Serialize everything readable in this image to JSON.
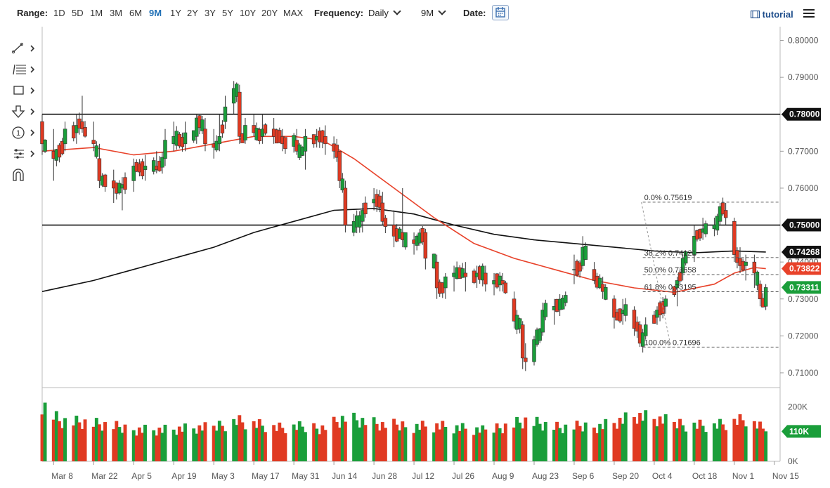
{
  "toolbar": {
    "range_label": "Range:",
    "ranges": [
      "1D",
      "5D",
      "1M",
      "3M",
      "6M",
      "9M",
      "1Y",
      "2Y",
      "3Y",
      "5Y",
      "10Y",
      "20Y",
      "MAX"
    ],
    "active_range": "9M",
    "frequency_label": "Frequency:",
    "frequency_value": "Daily",
    "period_value": "9M",
    "date_label": "Date:",
    "tutorial_label": "tutorial"
  },
  "colors": {
    "up": "#1a9e3a",
    "down": "#e03a22",
    "ma_short": "#e8422a",
    "ma_long": "#111111"
  },
  "chart_data": {
    "type": "candlestick",
    "y_axis": {
      "range": [
        0.706,
        0.802
      ],
      "ticks": [
        0.8,
        0.79,
        0.78,
        0.77,
        0.76,
        0.75,
        0.74,
        0.73,
        0.72,
        0.71
      ],
      "tick_labels": [
        "0.80000",
        "0.79000",
        "0.78000",
        "0.77000",
        "0.76000",
        "0.75000",
        "0.74000",
        "0.73000",
        "0.72000",
        "0.71000"
      ]
    },
    "x_axis": {
      "start": "2021-03-04",
      "end": "2021-11-17",
      "tick_dates": [
        "2021-03-08",
        "2021-03-22",
        "2021-04-05",
        "2021-04-19",
        "2021-05-03",
        "2021-05-17",
        "2021-05-31",
        "2021-06-14",
        "2021-06-28",
        "2021-07-12",
        "2021-07-26",
        "2021-08-09",
        "2021-08-23",
        "2021-09-06",
        "2021-09-20",
        "2021-10-04",
        "2021-10-18",
        "2021-11-01",
        "2021-11-15"
      ],
      "tick_labels": [
        "Mar 8",
        "Mar 22",
        "Apr 5",
        "Apr 19",
        "May 3",
        "May 17",
        "May 31",
        "Jun 14",
        "Jun 28",
        "Jul 12",
        "Jul 26",
        "Aug 9",
        "Aug 23",
        "Sep 6",
        "Sep 20",
        "Oct 4",
        "Oct 18",
        "Nov 1",
        "Nov 15"
      ]
    },
    "anchors": [
      [
        "2021-03-04",
        0.778,
        0.78,
        0.769,
        0.772
      ],
      [
        "2021-03-08",
        0.77,
        0.776,
        0.762,
        0.768
      ],
      [
        "2021-03-12",
        0.772,
        0.778,
        0.77,
        0.776
      ],
      [
        "2021-03-16",
        0.775,
        0.78,
        0.772,
        0.777
      ],
      [
        "2021-03-18",
        0.778,
        0.785,
        0.775,
        0.776
      ],
      [
        "2021-03-22",
        0.773,
        0.778,
        0.77,
        0.772
      ],
      [
        "2021-03-24",
        0.768,
        0.772,
        0.76,
        0.762
      ],
      [
        "2021-03-29",
        0.762,
        0.765,
        0.756,
        0.76
      ],
      [
        "2021-04-01",
        0.76,
        0.763,
        0.754,
        0.761
      ],
      [
        "2021-04-05",
        0.762,
        0.768,
        0.759,
        0.766
      ],
      [
        "2021-04-09",
        0.765,
        0.769,
        0.762,
        0.766
      ],
      [
        "2021-04-13",
        0.766,
        0.77,
        0.764,
        0.765
      ],
      [
        "2021-04-16",
        0.768,
        0.776,
        0.766,
        0.773
      ],
      [
        "2021-04-19",
        0.772,
        0.778,
        0.77,
        0.774
      ],
      [
        "2021-04-23",
        0.772,
        0.778,
        0.77,
        0.775
      ],
      [
        "2021-04-27",
        0.774,
        0.78,
        0.772,
        0.779
      ],
      [
        "2021-04-30",
        0.776,
        0.779,
        0.77,
        0.772
      ],
      [
        "2021-05-03",
        0.772,
        0.776,
        0.768,
        0.771
      ],
      [
        "2021-05-05",
        0.772,
        0.78,
        0.77,
        0.774
      ],
      [
        "2021-05-07",
        0.778,
        0.785,
        0.776,
        0.782
      ],
      [
        "2021-05-10",
        0.783,
        0.789,
        0.78,
        0.787
      ],
      [
        "2021-05-12",
        0.786,
        0.788,
        0.772,
        0.774
      ],
      [
        "2021-05-14",
        0.773,
        0.779,
        0.772,
        0.777
      ],
      [
        "2021-05-17",
        0.777,
        0.78,
        0.774,
        0.775
      ],
      [
        "2021-05-20",
        0.774,
        0.78,
        0.772,
        0.776
      ],
      [
        "2021-05-24",
        0.776,
        0.779,
        0.772,
        0.774
      ],
      [
        "2021-05-27",
        0.774,
        0.776,
        0.77,
        0.772
      ],
      [
        "2021-06-01",
        0.773,
        0.776,
        0.769,
        0.77
      ],
      [
        "2021-06-04",
        0.77,
        0.776,
        0.765,
        0.774
      ],
      [
        "2021-06-08",
        0.773,
        0.776,
        0.771,
        0.774
      ],
      [
        "2021-06-11",
        0.774,
        0.777,
        0.769,
        0.772
      ],
      [
        "2021-06-14",
        0.772,
        0.774,
        0.768,
        0.77
      ],
      [
        "2021-06-16",
        0.77,
        0.77,
        0.76,
        0.762
      ],
      [
        "2021-06-18",
        0.76,
        0.762,
        0.748,
        0.75
      ],
      [
        "2021-06-21",
        0.748,
        0.753,
        0.747,
        0.751
      ],
      [
        "2021-06-24",
        0.751,
        0.756,
        0.748,
        0.754
      ],
      [
        "2021-06-28",
        0.756,
        0.76,
        0.754,
        0.757
      ],
      [
        "2021-07-01",
        0.756,
        0.759,
        0.75,
        0.751
      ],
      [
        "2021-07-05",
        0.75,
        0.754,
        0.744,
        0.747
      ],
      [
        "2021-07-08",
        0.748,
        0.76,
        0.744,
        0.746
      ],
      [
        "2021-07-12",
        0.746,
        0.748,
        0.742,
        0.745
      ],
      [
        "2021-07-16",
        0.748,
        0.749,
        0.738,
        0.741
      ],
      [
        "2021-07-20",
        0.74,
        0.742,
        0.73,
        0.733
      ],
      [
        "2021-07-23",
        0.733,
        0.737,
        0.73,
        0.736
      ],
      [
        "2021-07-26",
        0.736,
        0.739,
        0.732,
        0.737
      ],
      [
        "2021-07-30",
        0.737,
        0.74,
        0.732,
        0.736
      ],
      [
        "2021-08-03",
        0.736,
        0.739,
        0.733,
        0.737
      ],
      [
        "2021-08-06",
        0.737,
        0.739,
        0.732,
        0.734
      ],
      [
        "2021-08-09",
        0.734,
        0.737,
        0.731,
        0.735
      ],
      [
        "2021-08-12",
        0.735,
        0.737,
        0.732,
        0.734
      ],
      [
        "2021-08-16",
        0.73,
        0.732,
        0.722,
        0.724
      ],
      [
        "2021-08-19",
        0.723,
        0.724,
        0.711,
        0.714
      ],
      [
        "2021-08-20",
        0.714,
        0.718,
        0.7105,
        0.713
      ],
      [
        "2021-08-23",
        0.713,
        0.72,
        0.712,
        0.719
      ],
      [
        "2021-08-26",
        0.721,
        0.729,
        0.72,
        0.727
      ],
      [
        "2021-08-30",
        0.727,
        0.73,
        0.723,
        0.728
      ],
      [
        "2021-09-03",
        0.729,
        0.732,
        0.728,
        0.731
      ],
      [
        "2021-09-06",
        0.738,
        0.742,
        0.734,
        0.738
      ],
      [
        "2021-09-09",
        0.739,
        0.747,
        0.738,
        0.744
      ],
      [
        "2021-09-13",
        0.738,
        0.74,
        0.734,
        0.735
      ],
      [
        "2021-09-16",
        0.734,
        0.736,
        0.73,
        0.732
      ],
      [
        "2021-09-20",
        0.73,
        0.731,
        0.722,
        0.725
      ],
      [
        "2021-09-23",
        0.726,
        0.73,
        0.723,
        0.727
      ],
      [
        "2021-09-27",
        0.727,
        0.728,
        0.72,
        0.722
      ],
      [
        "2021-09-29",
        0.723,
        0.724,
        0.717,
        0.718
      ],
      [
        "2021-10-01",
        0.72,
        0.725,
        0.719,
        0.723
      ],
      [
        "2021-10-05",
        0.725,
        0.728,
        0.723,
        0.727
      ],
      [
        "2021-10-08",
        0.728,
        0.731,
        0.726,
        0.73
      ],
      [
        "2021-10-12",
        0.733,
        0.736,
        0.728,
        0.735
      ],
      [
        "2021-10-14",
        0.737,
        0.742,
        0.735,
        0.741
      ],
      [
        "2021-10-18",
        0.742,
        0.75,
        0.74,
        0.747
      ],
      [
        "2021-10-21",
        0.748,
        0.752,
        0.746,
        0.749
      ],
      [
        "2021-10-25",
        0.749,
        0.752,
        0.747,
        0.75
      ],
      [
        "2021-10-27",
        0.751,
        0.756,
        0.75,
        0.755
      ],
      [
        "2021-10-29",
        0.754,
        0.756,
        0.75,
        0.752
      ],
      [
        "2021-11-01",
        0.751,
        0.752,
        0.74,
        0.742
      ],
      [
        "2021-11-03",
        0.741,
        0.744,
        0.737,
        0.739
      ],
      [
        "2021-11-05",
        0.739,
        0.742,
        0.735,
        0.74
      ],
      [
        "2021-11-08",
        0.74,
        0.742,
        0.733,
        0.737
      ],
      [
        "2021-11-10",
        0.734,
        0.735,
        0.728,
        0.73
      ],
      [
        "2021-11-12",
        0.728,
        0.734,
        0.727,
        0.7331
      ]
    ],
    "moving_average_short": [
      [
        "2021-03-04",
        0.77
      ],
      [
        "2021-03-22",
        0.771
      ],
      [
        "2021-04-05",
        0.769
      ],
      [
        "2021-04-19",
        0.77
      ],
      [
        "2021-05-03",
        0.772
      ],
      [
        "2021-05-17",
        0.774
      ],
      [
        "2021-05-31",
        0.774
      ],
      [
        "2021-06-10",
        0.773
      ],
      [
        "2021-06-21",
        0.768
      ],
      [
        "2021-07-05",
        0.76
      ],
      [
        "2021-07-19",
        0.752
      ],
      [
        "2021-08-02",
        0.745
      ],
      [
        "2021-08-16",
        0.741
      ],
      [
        "2021-08-30",
        0.738
      ],
      [
        "2021-09-13",
        0.735
      ],
      [
        "2021-09-27",
        0.733
      ],
      [
        "2021-10-11",
        0.7318
      ],
      [
        "2021-10-25",
        0.734
      ],
      [
        "2021-11-01",
        0.737
      ],
      [
        "2021-11-08",
        0.7385
      ],
      [
        "2021-11-12",
        0.7382
      ]
    ],
    "moving_average_long": [
      [
        "2021-03-04",
        0.732
      ],
      [
        "2021-03-22",
        0.735
      ],
      [
        "2021-04-05",
        0.738
      ],
      [
        "2021-04-19",
        0.741
      ],
      [
        "2021-05-03",
        0.744
      ],
      [
        "2021-05-17",
        0.748
      ],
      [
        "2021-05-31",
        0.751
      ],
      [
        "2021-06-14",
        0.754
      ],
      [
        "2021-06-28",
        0.7545
      ],
      [
        "2021-07-12",
        0.753
      ],
      [
        "2021-07-26",
        0.75
      ],
      [
        "2021-08-09",
        0.7475
      ],
      [
        "2021-08-23",
        0.746
      ],
      [
        "2021-09-06",
        0.745
      ],
      [
        "2021-09-20",
        0.744
      ],
      [
        "2021-10-04",
        0.743
      ],
      [
        "2021-10-18",
        0.7425
      ],
      [
        "2021-11-01",
        0.743
      ],
      [
        "2021-11-12",
        0.7427
      ]
    ],
    "horizontal_lines": [
      0.78,
      0.75
    ],
    "fibonacci": {
      "from_date": "2021-09-30",
      "to_date": "2021-11-17",
      "levels": [
        {
          "label": "0.0% 0.75619",
          "value": 0.75619
        },
        {
          "label": "38.2% 0.74121",
          "value": 0.74121
        },
        {
          "label": "50.0% 0.73658",
          "value": 0.73658
        },
        {
          "label": "61.8% 0.73195",
          "value": 0.73195
        },
        {
          "label": "100.0% 0.71696",
          "value": 0.71696
        }
      ]
    },
    "price_tags": [
      {
        "label": "0.78000",
        "value": 0.78,
        "style": "dark"
      },
      {
        "label": "0.75000",
        "value": 0.75,
        "style": "dark"
      },
      {
        "label": "0.74268",
        "value": 0.74268,
        "style": "dark"
      },
      {
        "label": "0.73822",
        "value": 0.73822,
        "style": "red"
      },
      {
        "label": "0.73311",
        "value": 0.73311,
        "style": "green"
      }
    ],
    "volume": {
      "range": [
        0,
        250000
      ],
      "ticks": [
        0,
        200000
      ],
      "tick_labels": [
        "0K",
        "200K"
      ],
      "current_label": "110K",
      "current_value": 110000,
      "anchors": [
        [
          "2021-03-04",
          215000
        ],
        [
          "2021-03-10",
          150000
        ],
        [
          "2021-03-20",
          140000
        ],
        [
          "2021-04-01",
          120000
        ],
        [
          "2021-04-15",
          115000
        ],
        [
          "2021-05-01",
          120000
        ],
        [
          "2021-05-11",
          150000
        ],
        [
          "2021-05-25",
          120000
        ],
        [
          "2021-06-10",
          125000
        ],
        [
          "2021-06-18",
          160000
        ],
        [
          "2021-07-01",
          130000
        ],
        [
          "2021-07-20",
          130000
        ],
        [
          "2021-08-05",
          110000
        ],
        [
          "2021-08-20",
          150000
        ],
        [
          "2021-09-01",
          120000
        ],
        [
          "2021-09-15",
          130000
        ],
        [
          "2021-09-28",
          165000
        ],
        [
          "2021-10-10",
          140000
        ],
        [
          "2021-10-25",
          130000
        ],
        [
          "2021-11-05",
          150000
        ],
        [
          "2021-11-12",
          110000
        ]
      ]
    }
  }
}
